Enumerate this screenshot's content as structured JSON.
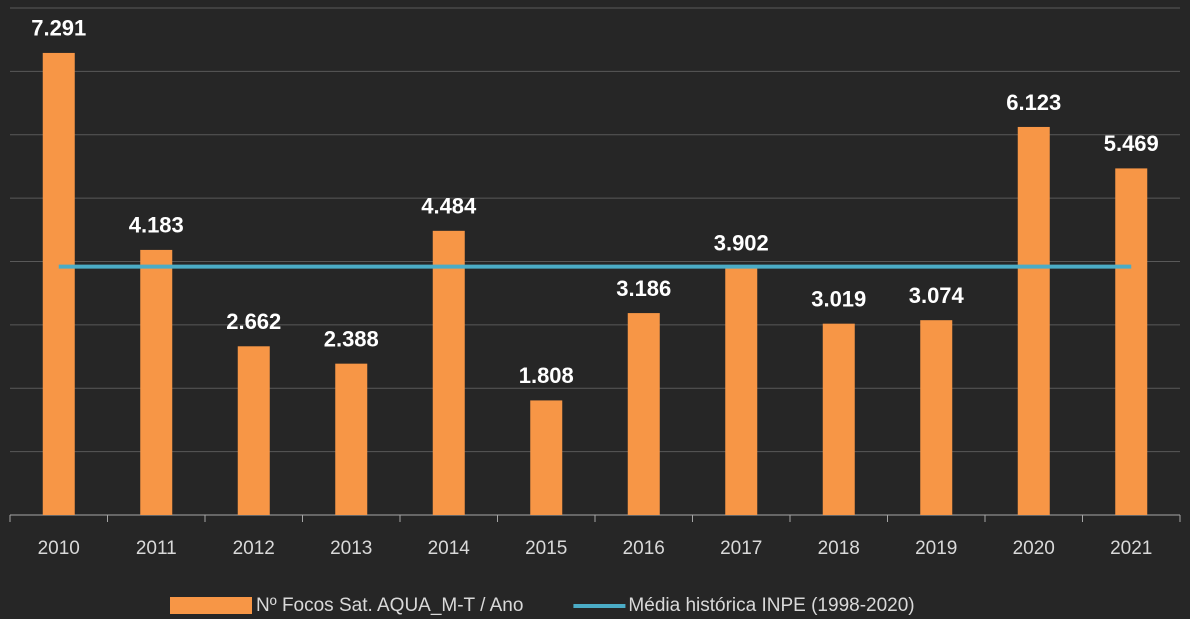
{
  "chart_data": {
    "type": "bar",
    "categories": [
      "2010",
      "2011",
      "2012",
      "2013",
      "2014",
      "2015",
      "2016",
      "2017",
      "2018",
      "2019",
      "2020",
      "2021"
    ],
    "series": [
      {
        "name": "Nº Focos Sat. AQUA_M-T / Ano",
        "type": "bar",
        "color": "#f79646",
        "values": [
          7291,
          4183,
          2662,
          2388,
          4484,
          1808,
          3186,
          3902,
          3019,
          3074,
          6123,
          5469
        ],
        "value_labels": [
          "7.291",
          "4.183",
          "2.662",
          "2.388",
          "4.484",
          "1.808",
          "3.186",
          "3.902",
          "3.019",
          "3.074",
          "6.123",
          "5.469"
        ]
      },
      {
        "name": "Média histórica INPE (1998-2020)",
        "type": "line",
        "color": "#4bacc6",
        "values": [
          3920,
          3920,
          3920,
          3920,
          3920,
          3920,
          3920,
          3920,
          3920,
          3920,
          3920,
          3920
        ]
      }
    ],
    "ylim": [
      0,
      8000
    ],
    "yticks": [
      0,
      1000,
      2000,
      3000,
      4000,
      5000,
      6000,
      7000,
      8000
    ],
    "grid": true,
    "legend": "bottom"
  }
}
